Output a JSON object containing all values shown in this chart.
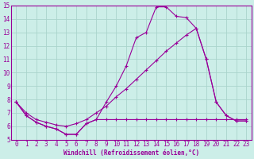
{
  "xlabel": "Windchill (Refroidissement éolien,°C)",
  "bg_color": "#cceee8",
  "grid_color": "#aad4cc",
  "line_color": "#990099",
  "xlim": [
    -0.5,
    23.5
  ],
  "ylim": [
    5,
    15
  ],
  "xticks": [
    0,
    1,
    2,
    3,
    4,
    5,
    6,
    7,
    8,
    9,
    10,
    11,
    12,
    13,
    14,
    15,
    16,
    17,
    18,
    19,
    20,
    21,
    22,
    23
  ],
  "yticks": [
    5,
    6,
    7,
    8,
    9,
    10,
    11,
    12,
    13,
    14,
    15
  ],
  "line1_x": [
    0,
    1,
    2,
    3,
    4,
    5,
    6,
    7,
    8,
    9,
    10,
    11,
    12,
    13,
    14,
    15,
    16,
    17,
    18,
    19,
    20,
    21,
    22,
    23
  ],
  "line1_y": [
    7.8,
    6.8,
    6.3,
    6.0,
    5.8,
    5.4,
    5.4,
    6.2,
    6.5,
    7.8,
    9.0,
    10.5,
    12.6,
    13.0,
    14.9,
    14.9,
    14.2,
    14.1,
    13.3,
    11.0,
    7.8,
    6.8,
    6.4,
    6.4
  ],
  "line2_x": [
    0,
    1,
    2,
    3,
    4,
    5,
    6,
    7,
    8,
    9,
    10,
    11,
    12,
    13,
    14,
    15,
    16,
    17,
    18,
    19,
    20,
    21,
    22,
    23
  ],
  "line2_y": [
    7.8,
    6.8,
    6.3,
    6.0,
    5.8,
    5.4,
    5.4,
    6.2,
    6.5,
    6.5,
    6.5,
    6.5,
    6.5,
    6.5,
    6.5,
    6.5,
    6.5,
    6.5,
    6.5,
    6.5,
    6.5,
    6.5,
    6.5,
    6.5
  ],
  "line3_x": [
    0,
    1,
    2,
    3,
    4,
    5,
    6,
    7,
    8,
    9,
    10,
    11,
    12,
    13,
    14,
    15,
    16,
    17,
    18,
    19,
    20,
    21,
    22,
    23
  ],
  "line3_y": [
    7.8,
    7.0,
    6.5,
    6.3,
    6.1,
    6.0,
    6.2,
    6.5,
    7.0,
    7.5,
    8.2,
    8.8,
    9.5,
    10.2,
    10.9,
    11.6,
    12.2,
    12.8,
    13.3,
    11.0,
    7.8,
    6.8,
    6.4,
    6.4
  ]
}
